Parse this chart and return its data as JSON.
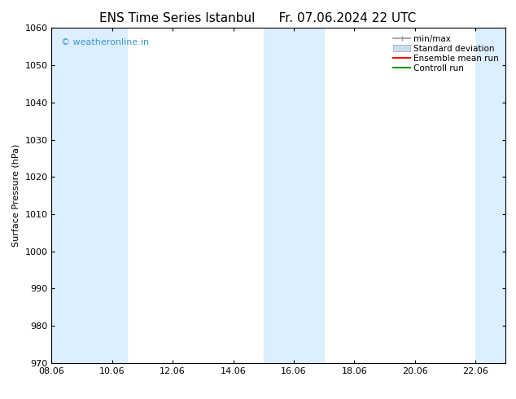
{
  "title_left": "ENS Time Series Istanbul",
  "title_right": "Fr. 07.06.2024 22 UTC",
  "ylabel": "Surface Pressure (hPa)",
  "ylim": [
    970,
    1060
  ],
  "yticks": [
    970,
    980,
    990,
    1000,
    1010,
    1020,
    1030,
    1040,
    1050,
    1060
  ],
  "xlim": [
    8.06,
    23.06
  ],
  "xticks": [
    8.06,
    10.06,
    12.06,
    14.06,
    16.06,
    18.06,
    20.06,
    22.06
  ],
  "xticklabels": [
    "08.06",
    "10.06",
    "12.06",
    "14.06",
    "16.06",
    "18.06",
    "20.06",
    "22.06"
  ],
  "background_color": "#ffffff",
  "plot_bg_color": "#ffffff",
  "shaded_regions": [
    {
      "xmin": 8.06,
      "xmax": 9.56,
      "color": "#ddeeff"
    },
    {
      "xmin": 9.56,
      "xmax": 10.56,
      "color": "#ddeeff"
    },
    {
      "xmin": 15.06,
      "xmax": 16.06,
      "color": "#ddeeff"
    },
    {
      "xmin": 16.06,
      "xmax": 17.06,
      "color": "#ddeeff"
    },
    {
      "xmin": 22.06,
      "xmax": 23.06,
      "color": "#ddeeff"
    }
  ],
  "watermark_text": "© weatheronline.in",
  "watermark_color": "#3399cc",
  "legend_labels": [
    "min/max",
    "Standard deviation",
    "Ensemble mean run",
    "Controll run"
  ],
  "legend_colors_line": [
    "#999999",
    "#aabbcc",
    "#ff0000",
    "#009900"
  ],
  "legend_colors_fill": [
    "#ffffff",
    "#ccddef",
    "#ffffff",
    "#ffffff"
  ],
  "title_fontsize": 11,
  "label_fontsize": 8,
  "tick_fontsize": 8,
  "legend_fontsize": 7.5
}
